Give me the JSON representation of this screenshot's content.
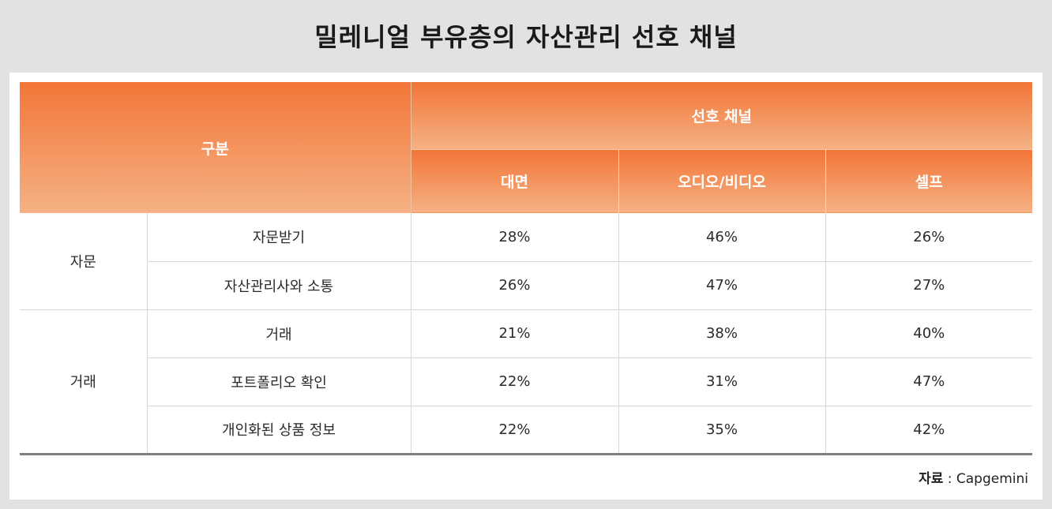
{
  "title": "밀레니얼 부유층의 자산관리 선호 채널",
  "table": {
    "header_category": "구분",
    "header_group": "선호 채널",
    "channels": [
      "대면",
      "오디오/비디오",
      "셀프"
    ],
    "groups": [
      {
        "name": "자문",
        "rows": [
          {
            "item": "자문받기",
            "values": [
              "28%",
              "46%",
              "26%"
            ]
          },
          {
            "item": "자산관리사와 소통",
            "values": [
              "26%",
              "47%",
              "27%"
            ]
          }
        ]
      },
      {
        "name": "거래",
        "rows": [
          {
            "item": "거래",
            "values": [
              "21%",
              "38%",
              "40%"
            ]
          },
          {
            "item": "포트폴리오 확인",
            "values": [
              "22%",
              "31%",
              "47%"
            ]
          },
          {
            "item": "개인화된 상품 정보",
            "values": [
              "22%",
              "35%",
              "42%"
            ]
          }
        ]
      }
    ]
  },
  "source": {
    "label": "자료",
    "separator": " : ",
    "name": "Capgemini"
  },
  "colors": {
    "header_top": "#f27537",
    "header_bottom": "#f5b285",
    "background": "#e2e2e2"
  }
}
